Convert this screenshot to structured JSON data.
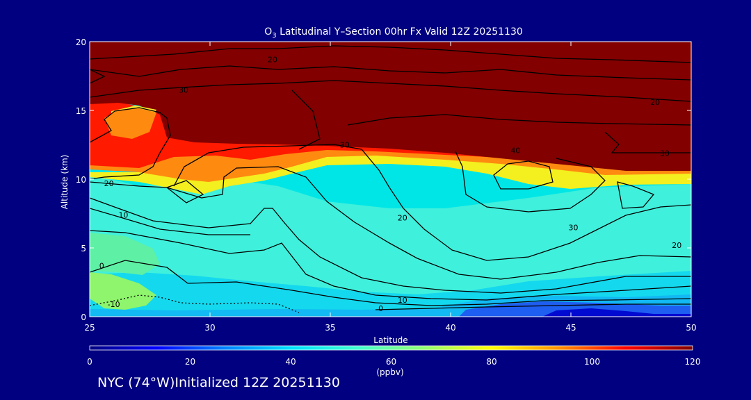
{
  "chart_data": {
    "type": "heatmap",
    "title_prefix": "O",
    "title_subscript": "3",
    "title_rest": " Latitudinal Y–Section 00hr  Fx Valid 12Z 20251130",
    "xlabel": "Latitude",
    "ylabel": "Altitude (km)",
    "xlim": [
      25,
      50
    ],
    "ylim": [
      0,
      20
    ],
    "xticks": [
      25,
      30,
      35,
      40,
      45,
      50
    ],
    "yticks": [
      0,
      5,
      10,
      15,
      20
    ],
    "colorbar": {
      "ticks": [
        0,
        20,
        40,
        60,
        80,
        100,
        120
      ],
      "range": [
        0,
        120
      ],
      "units": "(ppbv)",
      "colors": [
        "#000080",
        "#0000ff",
        "#0080ff",
        "#00e0ff",
        "#40ffd0",
        "#90ff70",
        "#ffff00",
        "#ff9000",
        "#ff0000",
        "#800000"
      ]
    },
    "contours": [
      {
        "label": "20",
        "lat": 32.6,
        "alt": 18.7
      },
      {
        "label": "30",
        "lat": 28.9,
        "alt": 16.5
      },
      {
        "label": "20",
        "lat": 48.5,
        "alt": 15.6
      },
      {
        "label": "30",
        "lat": 35.6,
        "alt": 12.5
      },
      {
        "label": "40",
        "lat": 42.7,
        "alt": 12.1
      },
      {
        "label": "30",
        "lat": 48.9,
        "alt": 11.9
      },
      {
        "label": "20",
        "lat": 25.8,
        "alt": 9.7
      },
      {
        "label": "10",
        "lat": 26.4,
        "alt": 7.4
      },
      {
        "label": "20",
        "lat": 38.0,
        "alt": 7.2
      },
      {
        "label": "30",
        "lat": 45.1,
        "alt": 6.5
      },
      {
        "label": "20",
        "lat": 49.4,
        "alt": 5.2
      },
      {
        "label": "0",
        "lat": 25.5,
        "alt": 3.7
      },
      {
        "label": "10",
        "lat": 38.0,
        "alt": 1.2
      },
      {
        "label": "0",
        "lat": 37.1,
        "alt": 0.6
      },
      {
        "label": "-10",
        "lat": 26.0,
        "alt": 0.9
      }
    ]
  },
  "footer": {
    "text": "NYC (74°W)Initialized 12Z 20251130"
  }
}
